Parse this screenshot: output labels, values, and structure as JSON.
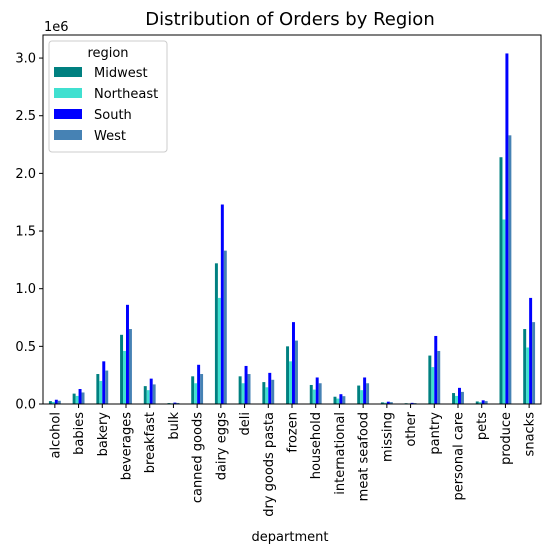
{
  "chart_data": {
    "type": "bar",
    "title": "Distribution of Orders by Region",
    "xlabel": "department",
    "ylabel": "",
    "y_offset_label": "1e6",
    "ylim": [
      0,
      3.2
    ],
    "yticks": [
      "0.0",
      "0.5",
      "1.0",
      "1.5",
      "2.0",
      "2.5",
      "3.0"
    ],
    "ytick_values": [
      0,
      0.5,
      1.0,
      1.5,
      2.0,
      2.5,
      3.0
    ],
    "grid": false,
    "legend": {
      "title": "region",
      "placement": "top-left"
    },
    "categories": [
      "alcohol",
      "babies",
      "bakery",
      "beverages",
      "breakfast",
      "bulk",
      "canned goods",
      "dairy eggs",
      "deli",
      "dry goods pasta",
      "frozen",
      "household",
      "international",
      "meat seafood",
      "missing",
      "other",
      "pantry",
      "personal care",
      "pets",
      "produce",
      "snacks"
    ],
    "series": [
      {
        "name": "Midwest",
        "color": "#008080",
        "values": [
          0.025,
          0.09,
          0.26,
          0.6,
          0.155,
          0.008,
          0.24,
          1.22,
          0.24,
          0.19,
          0.5,
          0.165,
          0.063,
          0.16,
          0.014,
          0.007,
          0.42,
          0.095,
          0.022,
          2.14,
          0.65
        ]
      },
      {
        "name": "Northeast",
        "color": "#40E0D0",
        "values": [
          0.018,
          0.07,
          0.2,
          0.46,
          0.12,
          0.006,
          0.18,
          0.92,
          0.18,
          0.145,
          0.37,
          0.125,
          0.047,
          0.12,
          0.011,
          0.005,
          0.32,
          0.07,
          0.016,
          1.6,
          0.49
        ]
      },
      {
        "name": "South",
        "color": "#0000FF",
        "values": [
          0.037,
          0.13,
          0.37,
          0.86,
          0.22,
          0.012,
          0.34,
          1.73,
          0.33,
          0.27,
          0.71,
          0.23,
          0.085,
          0.23,
          0.02,
          0.01,
          0.59,
          0.14,
          0.032,
          3.04,
          0.92
        ]
      },
      {
        "name": "West",
        "color": "#4682B4",
        "values": [
          0.028,
          0.1,
          0.29,
          0.65,
          0.17,
          0.009,
          0.26,
          1.33,
          0.26,
          0.21,
          0.55,
          0.18,
          0.068,
          0.18,
          0.016,
          0.008,
          0.46,
          0.105,
          0.025,
          2.33,
          0.71
        ]
      }
    ]
  }
}
